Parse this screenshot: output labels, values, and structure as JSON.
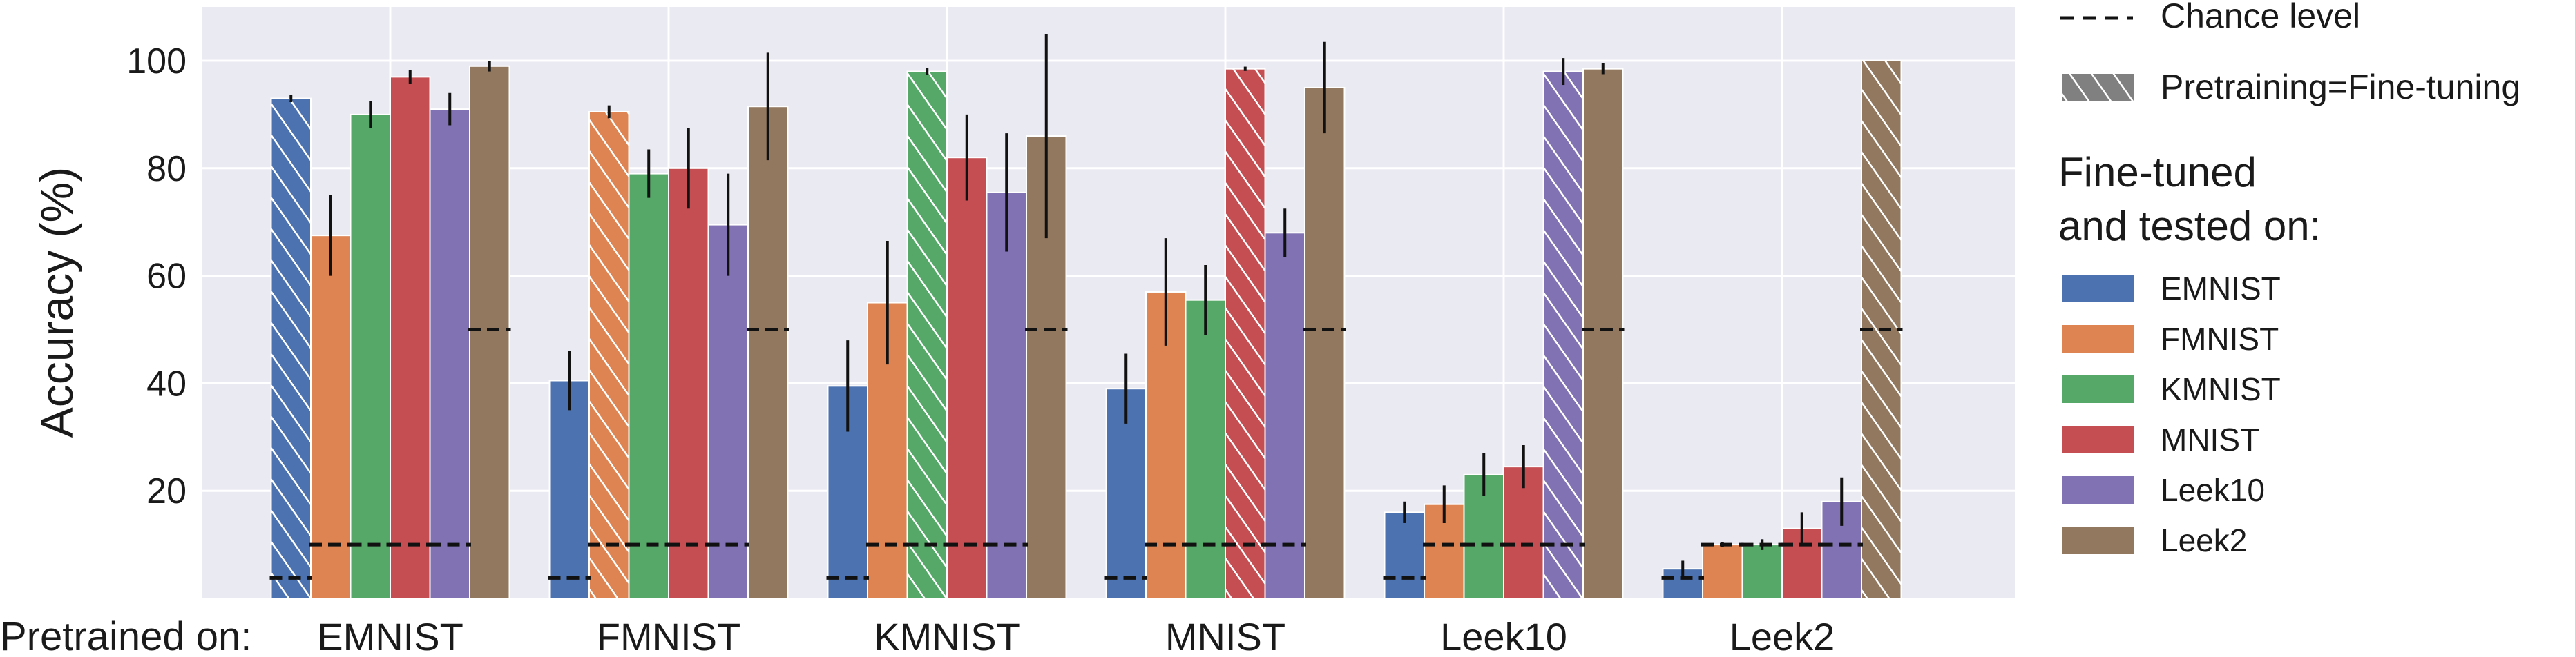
{
  "chart_data": {
    "type": "bar",
    "title": "",
    "ylabel": "Accuracy (%)",
    "xlabel_prefix": "Pretrained on:",
    "ylim": [
      0,
      110
    ],
    "yticks": [
      20,
      40,
      60,
      80,
      100
    ],
    "grid": true,
    "categories": [
      "EMNIST",
      "FMNIST",
      "KMNIST",
      "MNIST",
      "Leek10",
      "Leek2"
    ],
    "series": [
      {
        "name": "EMNIST",
        "color": "#4c72b0",
        "values": [
          93,
          40.5,
          39.5,
          39,
          16,
          5.5
        ],
        "errors": [
          0.7,
          5.5,
          8.5,
          6.5,
          2,
          1.5
        ]
      },
      {
        "name": "FMNIST",
        "color": "#dd8452",
        "values": [
          67.5,
          90.5,
          55,
          57,
          17.5,
          10
        ],
        "errors": [
          7.5,
          1.2,
          11.5,
          10,
          3.5,
          0.5
        ]
      },
      {
        "name": "KMNIST",
        "color": "#55a868",
        "values": [
          90,
          79,
          98,
          55.5,
          23,
          10
        ],
        "errors": [
          2.5,
          4.5,
          0.6,
          6.5,
          4,
          1
        ]
      },
      {
        "name": "MNIST",
        "color": "#c44e52",
        "values": [
          97,
          80,
          82,
          98.5,
          24.5,
          13
        ],
        "errors": [
          1.3,
          7.5,
          8,
          0.4,
          4,
          3
        ]
      },
      {
        "name": "Leek10",
        "color": "#8172b3",
        "values": [
          91,
          69.5,
          75.5,
          68,
          98,
          18
        ],
        "errors": [
          3,
          9.5,
          11,
          4.5,
          2.5,
          4.5
        ]
      },
      {
        "name": "Leek2",
        "color": "#937860",
        "values": [
          99,
          91.5,
          86,
          95,
          98.5,
          100
        ],
        "errors": [
          1,
          10,
          19,
          8.5,
          1,
          0
        ]
      }
    ],
    "hatched": [
      {
        "category": "EMNIST",
        "series": "EMNIST"
      },
      {
        "category": "FMNIST",
        "series": "FMNIST"
      },
      {
        "category": "KMNIST",
        "series": "KMNIST"
      },
      {
        "category": "MNIST",
        "series": "MNIST"
      },
      {
        "category": "Leek10",
        "series": "Leek10"
      },
      {
        "category": "Leek2",
        "series": "Leek2"
      }
    ],
    "chance_levels": [
      {
        "category": "EMNIST",
        "series": "EMNIST",
        "value": 3.8
      },
      {
        "category": "EMNIST",
        "series": "FMNIST",
        "value": 10
      },
      {
        "category": "EMNIST",
        "series": "KMNIST",
        "value": 10
      },
      {
        "category": "EMNIST",
        "series": "MNIST",
        "value": 10
      },
      {
        "category": "EMNIST",
        "series": "Leek10",
        "value": 10
      },
      {
        "category": "EMNIST",
        "series": "Leek2",
        "value": 50
      },
      {
        "category": "FMNIST",
        "series": "EMNIST",
        "value": 3.8
      },
      {
        "category": "FMNIST",
        "series": "FMNIST",
        "value": 10
      },
      {
        "category": "FMNIST",
        "series": "KMNIST",
        "value": 10
      },
      {
        "category": "FMNIST",
        "series": "MNIST",
        "value": 10
      },
      {
        "category": "FMNIST",
        "series": "Leek10",
        "value": 10
      },
      {
        "category": "FMNIST",
        "series": "Leek2",
        "value": 50
      },
      {
        "category": "KMNIST",
        "series": "EMNIST",
        "value": 3.8
      },
      {
        "category": "KMNIST",
        "series": "FMNIST",
        "value": 10
      },
      {
        "category": "KMNIST",
        "series": "KMNIST",
        "value": 10
      },
      {
        "category": "KMNIST",
        "series": "MNIST",
        "value": 10
      },
      {
        "category": "KMNIST",
        "series": "Leek10",
        "value": 10
      },
      {
        "category": "KMNIST",
        "series": "Leek2",
        "value": 50
      },
      {
        "category": "MNIST",
        "series": "EMNIST",
        "value": 3.8
      },
      {
        "category": "MNIST",
        "series": "FMNIST",
        "value": 10
      },
      {
        "category": "MNIST",
        "series": "KMNIST",
        "value": 10
      },
      {
        "category": "MNIST",
        "series": "MNIST",
        "value": 10
      },
      {
        "category": "MNIST",
        "series": "Leek10",
        "value": 10
      },
      {
        "category": "MNIST",
        "series": "Leek2",
        "value": 50
      },
      {
        "category": "Leek10",
        "series": "EMNIST",
        "value": 3.8
      },
      {
        "category": "Leek10",
        "series": "FMNIST",
        "value": 10
      },
      {
        "category": "Leek10",
        "series": "KMNIST",
        "value": 10
      },
      {
        "category": "Leek10",
        "series": "MNIST",
        "value": 10
      },
      {
        "category": "Leek10",
        "series": "Leek10",
        "value": 10
      },
      {
        "category": "Leek10",
        "series": "Leek2",
        "value": 50
      },
      {
        "category": "Leek2",
        "series": "EMNIST",
        "value": 3.8
      },
      {
        "category": "Leek2",
        "series": "FMNIST",
        "value": 10
      },
      {
        "category": "Leek2",
        "series": "KMNIST",
        "value": 10
      },
      {
        "category": "Leek2",
        "series": "MNIST",
        "value": 10
      },
      {
        "category": "Leek2",
        "series": "Leek10",
        "value": 10
      },
      {
        "category": "Leek2",
        "series": "Leek2",
        "value": 50
      }
    ],
    "legend": {
      "chance_label": "Chance level",
      "hatch_label": "Pretraining=Fine-tuning",
      "title_line1": "Fine-tuned",
      "title_line2": "and tested on:",
      "placement": "right"
    },
    "colors": {
      "background": "#eaeaf2",
      "grid": "#ffffff",
      "hatch_swatch": "#808080"
    }
  }
}
